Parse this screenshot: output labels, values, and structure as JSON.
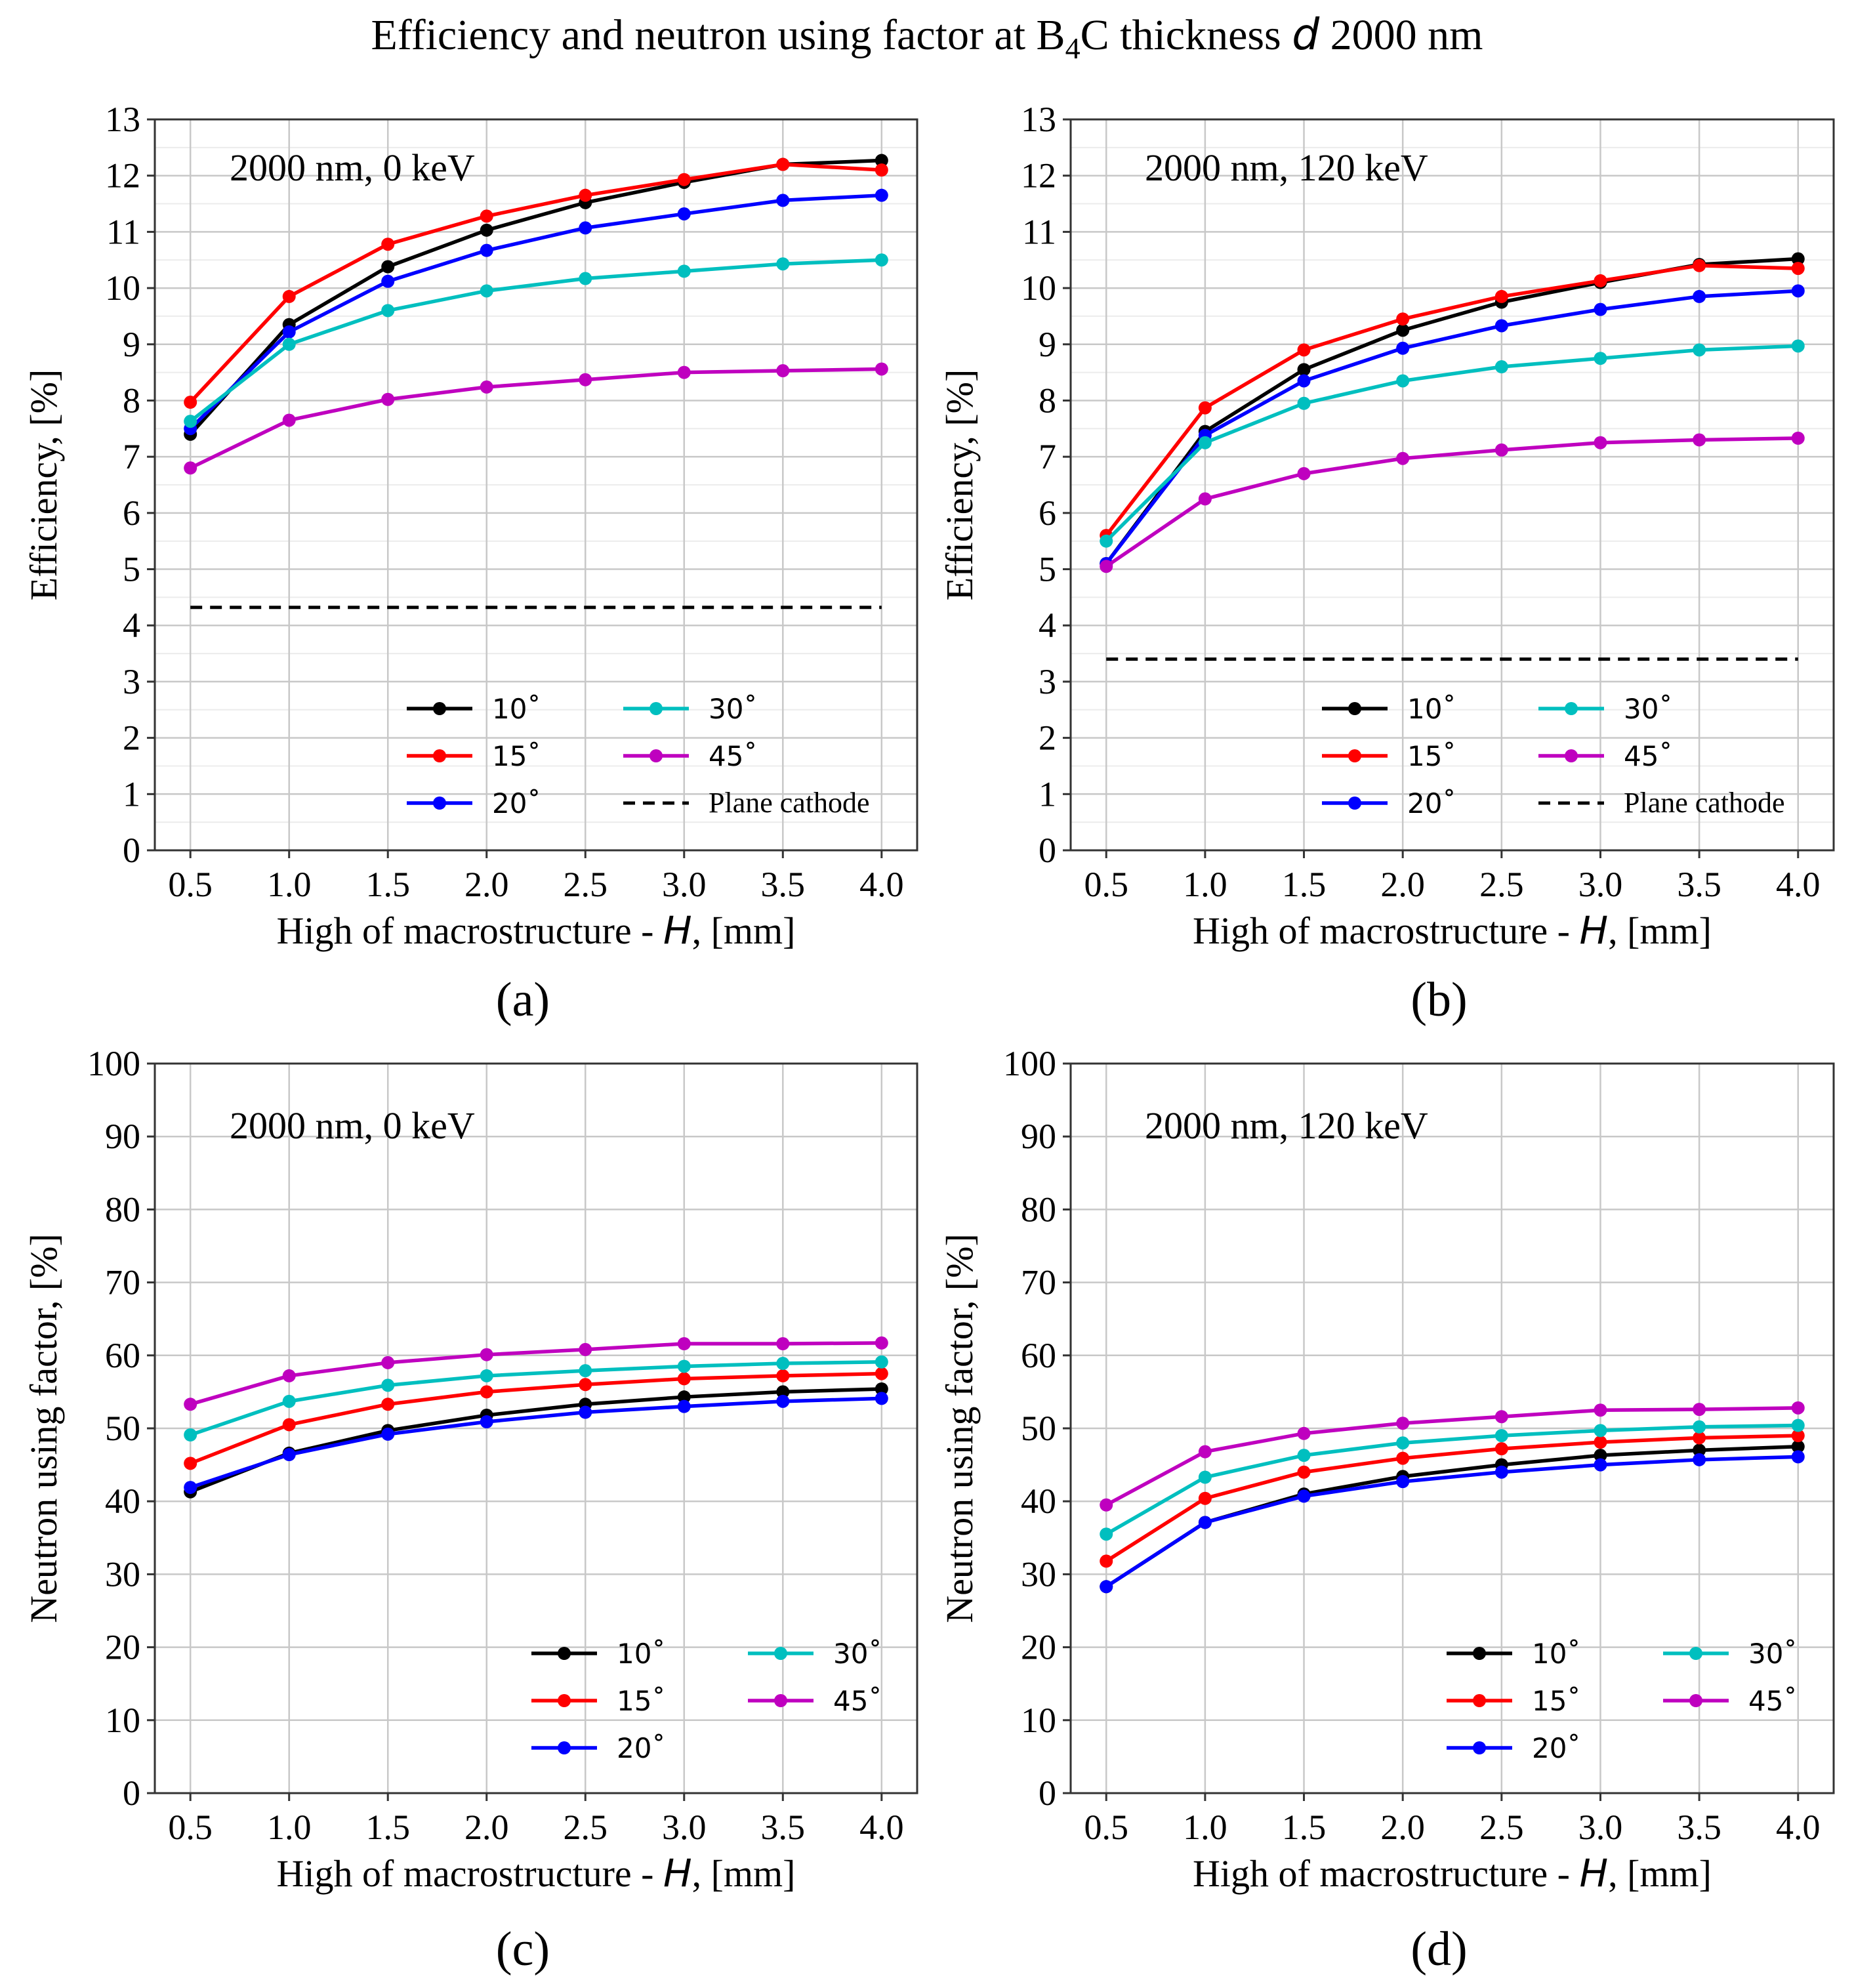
{
  "figure": {
    "title": "Efficiency and neutron using factor at B₄C thickness d 2000 nm"
  },
  "colors": {
    "10": "#000000",
    "15": "#ff0000",
    "20": "#0000ff",
    "30": "#00bfbf",
    "45": "#bf00bf",
    "plane": "#000000"
  },
  "chart_data": [
    {
      "type": "line",
      "panel_label": "(a)",
      "annotation": "2000 nm, 0 keV",
      "xlabel": "High of macrostructure - H, [mm]",
      "ylabel": "Efficiency, [%]",
      "xlim": [
        0.32,
        4.18
      ],
      "ylim": [
        0,
        13
      ],
      "xticks": [
        0.5,
        1.0,
        1.5,
        2.0,
        2.5,
        3.0,
        3.5,
        4.0
      ],
      "xtick_labels": [
        "0.5",
        "1.0",
        "1.5",
        "2.0",
        "2.5",
        "3.0",
        "3.5",
        "4.0"
      ],
      "yticks": [
        0,
        1,
        2,
        3,
        4,
        5,
        6,
        7,
        8,
        9,
        10,
        11,
        12,
        13
      ],
      "ytick_labels": [
        "0",
        "1",
        "2",
        "3",
        "4",
        "5",
        "6",
        "7",
        "8",
        "9",
        "10",
        "11",
        "12",
        "13"
      ],
      "minor_grid": true,
      "x": [
        0.5,
        1.0,
        1.5,
        2.0,
        2.5,
        3.0,
        3.5,
        4.0
      ],
      "series": [
        {
          "name": "10˚",
          "key": "10",
          "values": [
            7.4,
            9.35,
            10.38,
            11.03,
            11.52,
            11.88,
            12.2,
            12.27
          ]
        },
        {
          "name": "15˚",
          "key": "15",
          "values": [
            7.97,
            9.85,
            10.78,
            11.28,
            11.65,
            11.93,
            12.2,
            12.1
          ]
        },
        {
          "name": "20˚",
          "key": "20",
          "values": [
            7.5,
            9.22,
            10.12,
            10.67,
            11.07,
            11.32,
            11.56,
            11.65
          ]
        },
        {
          "name": "30˚",
          "key": "30",
          "values": [
            7.63,
            9.0,
            9.6,
            9.95,
            10.17,
            10.3,
            10.43,
            10.5
          ]
        },
        {
          "name": "45˚",
          "key": "45",
          "values": [
            6.8,
            7.65,
            8.02,
            8.24,
            8.37,
            8.5,
            8.53,
            8.56
          ]
        }
      ],
      "reference_line": {
        "name": "Plane cathode",
        "value": 4.32
      },
      "legend": "lower-right, 2 columns"
    },
    {
      "type": "line",
      "panel_label": "(b)",
      "annotation": "2000 nm, 120 keV",
      "xlabel": "High of macrostructure - H, [mm]",
      "ylabel": "Efficiency, [%]",
      "xlim": [
        0.32,
        4.18
      ],
      "ylim": [
        0,
        13
      ],
      "xticks": [
        0.5,
        1.0,
        1.5,
        2.0,
        2.5,
        3.0,
        3.5,
        4.0
      ],
      "xtick_labels": [
        "0.5",
        "1.0",
        "1.5",
        "2.0",
        "2.5",
        "3.0",
        "3.5",
        "4.0"
      ],
      "yticks": [
        0,
        1,
        2,
        3,
        4,
        5,
        6,
        7,
        8,
        9,
        10,
        11,
        12,
        13
      ],
      "ytick_labels": [
        "0",
        "1",
        "2",
        "3",
        "4",
        "5",
        "6",
        "7",
        "8",
        "9",
        "10",
        "11",
        "12",
        "13"
      ],
      "minor_grid": true,
      "x": [
        0.5,
        1.0,
        1.5,
        2.0,
        2.5,
        3.0,
        3.5,
        4.0
      ],
      "series": [
        {
          "name": "10˚",
          "key": "10",
          "values": [
            5.1,
            7.45,
            8.55,
            9.25,
            9.75,
            10.1,
            10.42,
            10.52
          ]
        },
        {
          "name": "15˚",
          "key": "15",
          "values": [
            5.6,
            7.87,
            8.9,
            9.45,
            9.85,
            10.13,
            10.4,
            10.35
          ]
        },
        {
          "name": "20˚",
          "key": "20",
          "values": [
            5.1,
            7.38,
            8.35,
            8.93,
            9.33,
            9.62,
            9.85,
            9.95
          ]
        },
        {
          "name": "30˚",
          "key": "30",
          "values": [
            5.5,
            7.25,
            7.95,
            8.35,
            8.6,
            8.75,
            8.9,
            8.97
          ]
        },
        {
          "name": "45˚",
          "key": "45",
          "values": [
            5.05,
            6.25,
            6.7,
            6.97,
            7.12,
            7.25,
            7.3,
            7.33
          ]
        }
      ],
      "reference_line": {
        "name": "Plane cathode",
        "value": 3.4
      },
      "legend": "lower-right, 2 columns"
    },
    {
      "type": "line",
      "panel_label": "(c)",
      "annotation": "2000 nm, 0 keV",
      "xlabel": "High of macrostructure - H, [mm]",
      "ylabel": "Neutron using factor, [%]",
      "xlim": [
        0.32,
        4.18
      ],
      "ylim": [
        0,
        100
      ],
      "xticks": [
        0.5,
        1.0,
        1.5,
        2.0,
        2.5,
        3.0,
        3.5,
        4.0
      ],
      "xtick_labels": [
        "0.5",
        "1.0",
        "1.5",
        "2.0",
        "2.5",
        "3.0",
        "3.5",
        "4.0"
      ],
      "yticks": [
        0,
        10,
        20,
        30,
        40,
        50,
        60,
        70,
        80,
        90,
        100
      ],
      "ytick_labels": [
        "0",
        "10",
        "20",
        "30",
        "40",
        "50",
        "60",
        "70",
        "80",
        "90",
        "100"
      ],
      "minor_grid": false,
      "x": [
        0.5,
        1.0,
        1.5,
        2.0,
        2.5,
        3.0,
        3.5,
        4.0
      ],
      "series": [
        {
          "name": "10˚",
          "key": "10",
          "values": [
            41.3,
            46.6,
            49.7,
            51.8,
            53.3,
            54.3,
            55.0,
            55.4
          ]
        },
        {
          "name": "15˚",
          "key": "15",
          "values": [
            45.2,
            50.5,
            53.3,
            55.0,
            56.0,
            56.8,
            57.2,
            57.5
          ]
        },
        {
          "name": "20˚",
          "key": "20",
          "values": [
            41.9,
            46.4,
            49.2,
            50.9,
            52.2,
            53.0,
            53.7,
            54.1
          ]
        },
        {
          "name": "30˚",
          "key": "30",
          "values": [
            49.1,
            53.7,
            55.9,
            57.2,
            57.9,
            58.5,
            58.9,
            59.1
          ]
        },
        {
          "name": "45˚",
          "key": "45",
          "values": [
            53.3,
            57.2,
            59.0,
            60.1,
            60.8,
            61.6,
            61.6,
            61.7
          ]
        }
      ],
      "legend": "lower-right, 2 columns"
    },
    {
      "type": "line",
      "panel_label": "(d)",
      "annotation": "2000 nm, 120 keV",
      "xlabel": "High of macrostructure - H, [mm]",
      "ylabel": "Neutron using factor, [%]",
      "xlim": [
        0.32,
        4.18
      ],
      "ylim": [
        0,
        100
      ],
      "xticks": [
        0.5,
        1.0,
        1.5,
        2.0,
        2.5,
        3.0,
        3.5,
        4.0
      ],
      "xtick_labels": [
        "0.5",
        "1.0",
        "1.5",
        "2.0",
        "2.5",
        "3.0",
        "3.5",
        "4.0"
      ],
      "yticks": [
        0,
        10,
        20,
        30,
        40,
        50,
        60,
        70,
        80,
        90,
        100
      ],
      "ytick_labels": [
        "0",
        "10",
        "20",
        "30",
        "40",
        "50",
        "60",
        "70",
        "80",
        "90",
        "100"
      ],
      "minor_grid": false,
      "x": [
        0.5,
        1.0,
        1.5,
        2.0,
        2.5,
        3.0,
        3.5,
        4.0
      ],
      "series": [
        {
          "name": "10˚",
          "key": "10",
          "values": [
            28.3,
            37.1,
            41.0,
            43.4,
            45.0,
            46.3,
            47.0,
            47.5
          ]
        },
        {
          "name": "15˚",
          "key": "15",
          "values": [
            31.8,
            40.4,
            44.0,
            45.9,
            47.2,
            48.1,
            48.7,
            49.0
          ]
        },
        {
          "name": "20˚",
          "key": "20",
          "values": [
            28.3,
            37.1,
            40.7,
            42.7,
            44.0,
            45.0,
            45.7,
            46.1
          ]
        },
        {
          "name": "30˚",
          "key": "30",
          "values": [
            35.5,
            43.3,
            46.3,
            48.0,
            49.0,
            49.7,
            50.2,
            50.4
          ]
        },
        {
          "name": "45˚",
          "key": "45",
          "values": [
            39.5,
            46.8,
            49.3,
            50.7,
            51.6,
            52.5,
            52.6,
            52.8
          ]
        }
      ],
      "legend": "lower-right, 2 columns"
    }
  ]
}
